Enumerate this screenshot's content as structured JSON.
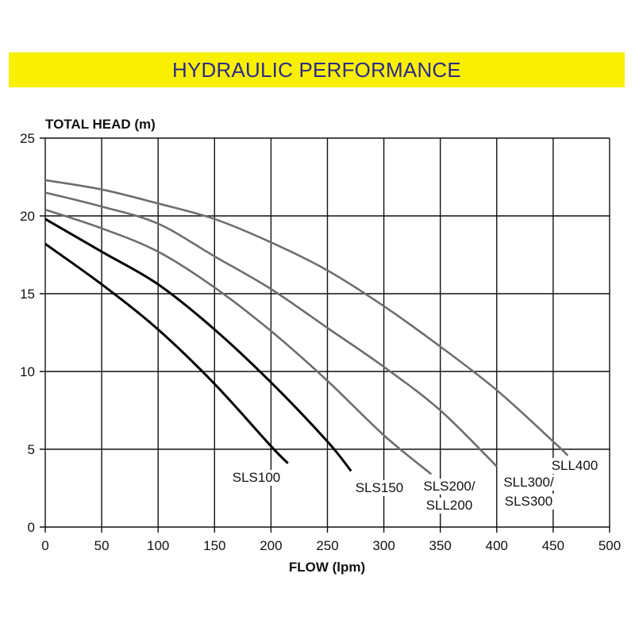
{
  "header": {
    "title": "HYDRAULIC PERFORMANCE"
  },
  "colors": {
    "banner": "#f8f000",
    "title_text": "#2e2a8a",
    "black_curve": "#000000",
    "grey_curve": "#6e6e6e"
  },
  "chart_data": {
    "type": "line",
    "title": "HYDRAULIC PERFORMANCE",
    "xlabel": "FLOW (lpm)",
    "ylabel": "TOTAL HEAD (m)",
    "xlim": [
      0,
      500
    ],
    "ylim": [
      0,
      25
    ],
    "xticks": [
      0,
      50,
      100,
      150,
      200,
      250,
      300,
      350,
      400,
      450,
      500
    ],
    "yticks": [
      0,
      5,
      10,
      15,
      20,
      25
    ],
    "grid": true,
    "legend": "none (curve labels at curve ends)",
    "series": [
      {
        "name": "SLS100",
        "label_lines": [
          "SLS100"
        ],
        "color": "#000000",
        "x": [
          0,
          50,
          100,
          150,
          200,
          215
        ],
        "y": [
          18.2,
          15.6,
          12.7,
          9.2,
          5.2,
          4.1
        ]
      },
      {
        "name": "SLS150",
        "label_lines": [
          "SLS150"
        ],
        "color": "#000000",
        "x": [
          0,
          50,
          100,
          150,
          200,
          250,
          271
        ],
        "y": [
          19.8,
          17.7,
          15.6,
          12.7,
          9.3,
          5.5,
          3.6
        ]
      },
      {
        "name": "SLS200/SLL200",
        "label_lines": [
          "SLS200/",
          "SLL200"
        ],
        "color": "#6e6e6e",
        "x": [
          0,
          50,
          100,
          150,
          200,
          250,
          300,
          342
        ],
        "y": [
          20.4,
          19.2,
          17.7,
          15.4,
          12.6,
          9.4,
          5.9,
          3.4
        ]
      },
      {
        "name": "SLL300/SLS300",
        "label_lines": [
          "SLL300/",
          "SLS300"
        ],
        "color": "#6e6e6e",
        "x": [
          0,
          50,
          100,
          150,
          200,
          250,
          300,
          350,
          400
        ],
        "y": [
          21.5,
          20.6,
          19.5,
          17.4,
          15.3,
          12.8,
          10.3,
          7.5,
          3.9
        ]
      },
      {
        "name": "SLL400",
        "label_lines": [
          "SLL400"
        ],
        "color": "#6e6e6e",
        "x": [
          0,
          50,
          100,
          150,
          200,
          250,
          300,
          350,
          400,
          450,
          463
        ],
        "y": [
          22.3,
          21.7,
          20.8,
          19.8,
          18.3,
          16.5,
          14.2,
          11.6,
          8.8,
          5.5,
          4.6
        ]
      }
    ]
  }
}
